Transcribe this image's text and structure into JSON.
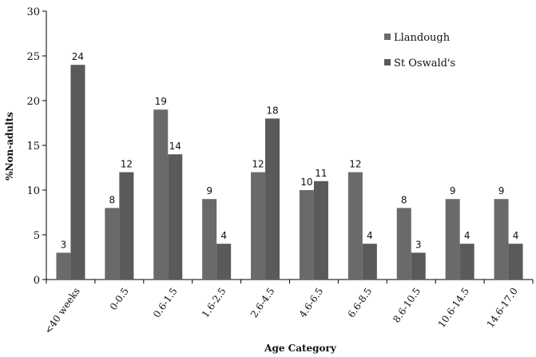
{
  "chart_data": {
    "type": "bar",
    "title": "",
    "xlabel": "Age Category",
    "ylabel": "%Non-adults",
    "ylim": [
      0,
      30
    ],
    "yticks": [
      0,
      5,
      10,
      15,
      20,
      25,
      30
    ],
    "categories": [
      "<40 weeks",
      "0-0.5",
      "0.6-1.5",
      "1.6-2.5",
      "2.6-4.5",
      "4.6-6.5",
      "6.6-8.5",
      "8.6-10.5",
      "10.6-14.5",
      "14.6-17.0"
    ],
    "series": [
      {
        "name": "Llandough",
        "values": [
          3,
          8,
          19,
          9,
          12,
          10,
          12,
          8,
          9,
          9
        ]
      },
      {
        "name": "St Oswald's",
        "values": [
          24,
          12,
          14,
          4,
          18,
          11,
          4,
          3,
          4,
          4
        ]
      }
    ],
    "grid": false,
    "legend_position": "top-right",
    "colors": {
      "Llandough": "#6a6a6a",
      "St Oswald's": "#5a5a5a"
    }
  }
}
